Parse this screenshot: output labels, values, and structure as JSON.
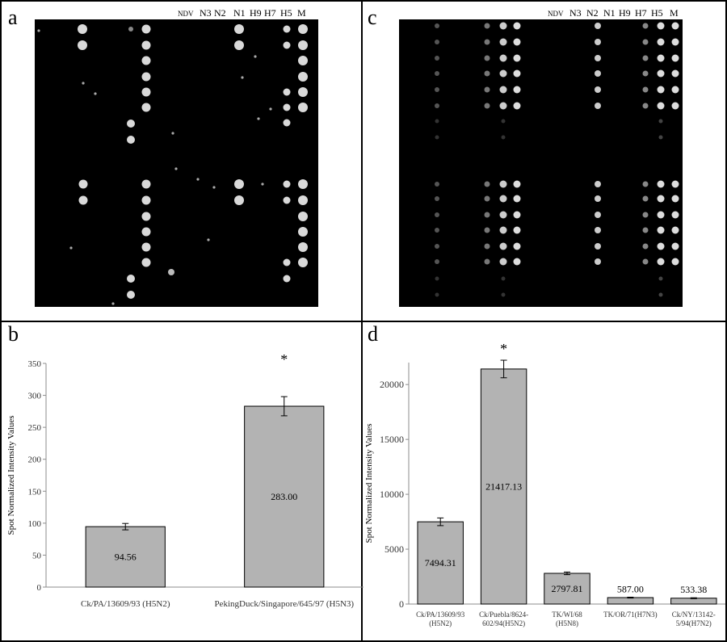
{
  "panels": {
    "a": {
      "letter": "a"
    },
    "b": {
      "letter": "b"
    },
    "c": {
      "letter": "c"
    },
    "d": {
      "letter": "d"
    }
  },
  "microarray": {
    "column_labels": [
      "NDV",
      "N3",
      "N2",
      "N1",
      "H9",
      "H7",
      "H5",
      "M"
    ]
  },
  "colors": {
    "bar_fill": "#b3b3b3",
    "bar_stroke": "#000000",
    "axis": "#8c8c8c",
    "array_bg": "#000000",
    "spot": "#d9d9d9"
  },
  "chart_data": [
    {
      "panel": "b",
      "type": "bar",
      "ylabel": "Spot Normalized Intensity Values",
      "categories": [
        "Ck/PA/13609/93 (H5N2)",
        "PekingDuck/Singapore/645/97 (H5N3)"
      ],
      "values": [
        94.56,
        283.0
      ],
      "errors": [
        5,
        15
      ],
      "value_labels": [
        "94.56",
        "283.00"
      ],
      "significance": [
        "",
        "*"
      ],
      "ylim": [
        0,
        350
      ],
      "yticks": [
        0,
        50,
        100,
        150,
        200,
        250,
        300,
        350
      ],
      "grid": false
    },
    {
      "panel": "d",
      "type": "bar",
      "ylabel": "Spot Normalized Intensity Values",
      "categories": [
        [
          "Ck/PA/13609/93",
          "(H5N2)"
        ],
        [
          "Ck/Puebla/8624-",
          "602/94(H5N2)"
        ],
        [
          "TK/WI/68",
          "(H5N8)"
        ],
        [
          "TK/OR/71(H7N3)"
        ],
        [
          "Ck/NY/13142-",
          "5/94(H7N2)"
        ]
      ],
      "values": [
        7494.31,
        21417.13,
        2797.81,
        587.0,
        533.38
      ],
      "errors": [
        350,
        800,
        120,
        40,
        40
      ],
      "value_labels": [
        "7494.31",
        "21417.13",
        "2797.81",
        "587.00",
        "533.38"
      ],
      "significance": [
        "",
        "*",
        "",
        "",
        ""
      ],
      "ylim": [
        0,
        22000
      ],
      "yticks": [
        0,
        5000,
        10000,
        15000,
        20000
      ],
      "grid": false
    }
  ]
}
